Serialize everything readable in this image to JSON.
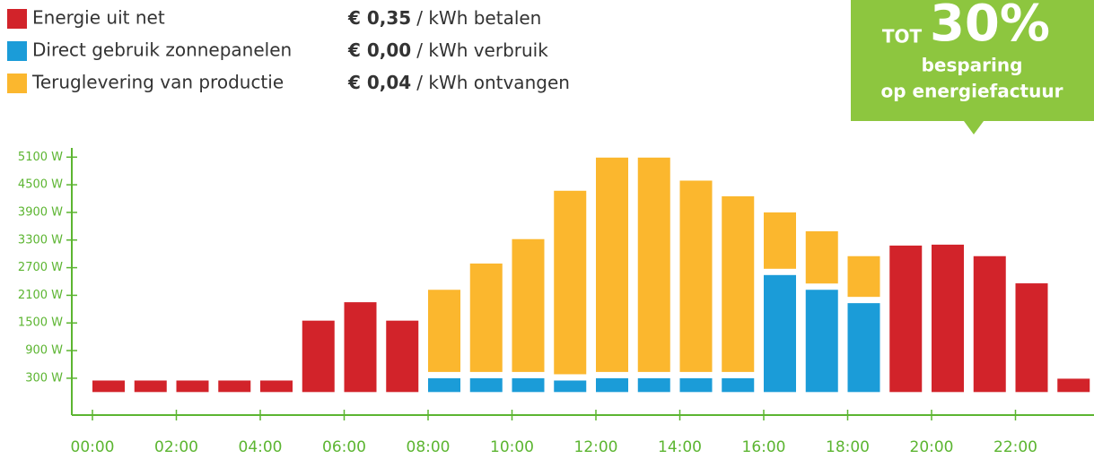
{
  "chart_data": {
    "type": "stacked_bar",
    "categories": [
      "00:00",
      null,
      "02:00",
      null,
      "04:00",
      null,
      "06:00",
      null,
      "08:00",
      null,
      "10:00",
      null,
      "12:00",
      null,
      "14:00",
      null,
      "16:00",
      null,
      "18:00",
      null,
      "20:00",
      null,
      "22:00",
      null
    ],
    "series": [
      {
        "name": "Energie uit net",
        "color": "#d2232a",
        "price": "€ 0,35",
        "unit": "/ kWh betalen",
        "values": [
          250,
          250,
          250,
          250,
          250,
          1550,
          1950,
          1550,
          null,
          null,
          null,
          null,
          null,
          null,
          null,
          null,
          null,
          null,
          null,
          3180,
          3200,
          2950,
          2360,
          290
        ]
      },
      {
        "name": "Direct gebruik zonnepanelen",
        "color": "#1b9cd8",
        "price": "€ 0,00",
        "unit": "/ kWh verbruik",
        "values": [
          null,
          null,
          null,
          null,
          null,
          null,
          null,
          null,
          300,
          300,
          300,
          250,
          300,
          300,
          300,
          300,
          2540,
          2220,
          1930,
          null,
          null,
          null,
          null,
          null
        ]
      },
      {
        "name": "Teruglevering van productie",
        "color": "#fbb72e",
        "price": "€ 0,04",
        "unit": "/ kWh ontvangen",
        "values": [
          null,
          null,
          null,
          null,
          null,
          null,
          null,
          null,
          1920,
          2490,
          3020,
          4120,
          4790,
          4790,
          4290,
          3950,
          1360,
          1270,
          1020,
          null,
          null,
          null,
          null,
          null
        ]
      }
    ],
    "ylim": [
      -500,
      5300
    ],
    "yticks": [
      {
        "value": 300,
        "label": "300 W"
      },
      {
        "value": 900,
        "label": "900 W"
      },
      {
        "value": 1500,
        "label": "1500 W"
      },
      {
        "value": 2100,
        "label": "2100 W"
      },
      {
        "value": 2700,
        "label": "2700 W"
      },
      {
        "value": 3300,
        "label": "3300 W"
      },
      {
        "value": 3900,
        "label": "3900 W"
      },
      {
        "value": 4500,
        "label": "4500 W"
      },
      {
        "value": 5100,
        "label": "5100 W"
      }
    ],
    "axis_color": "#5cb531",
    "badge": {
      "prefix": "TOT",
      "number": "30%",
      "line1": "besparing",
      "line2": "op energiefactuur",
      "color": "#8dc63f"
    }
  }
}
